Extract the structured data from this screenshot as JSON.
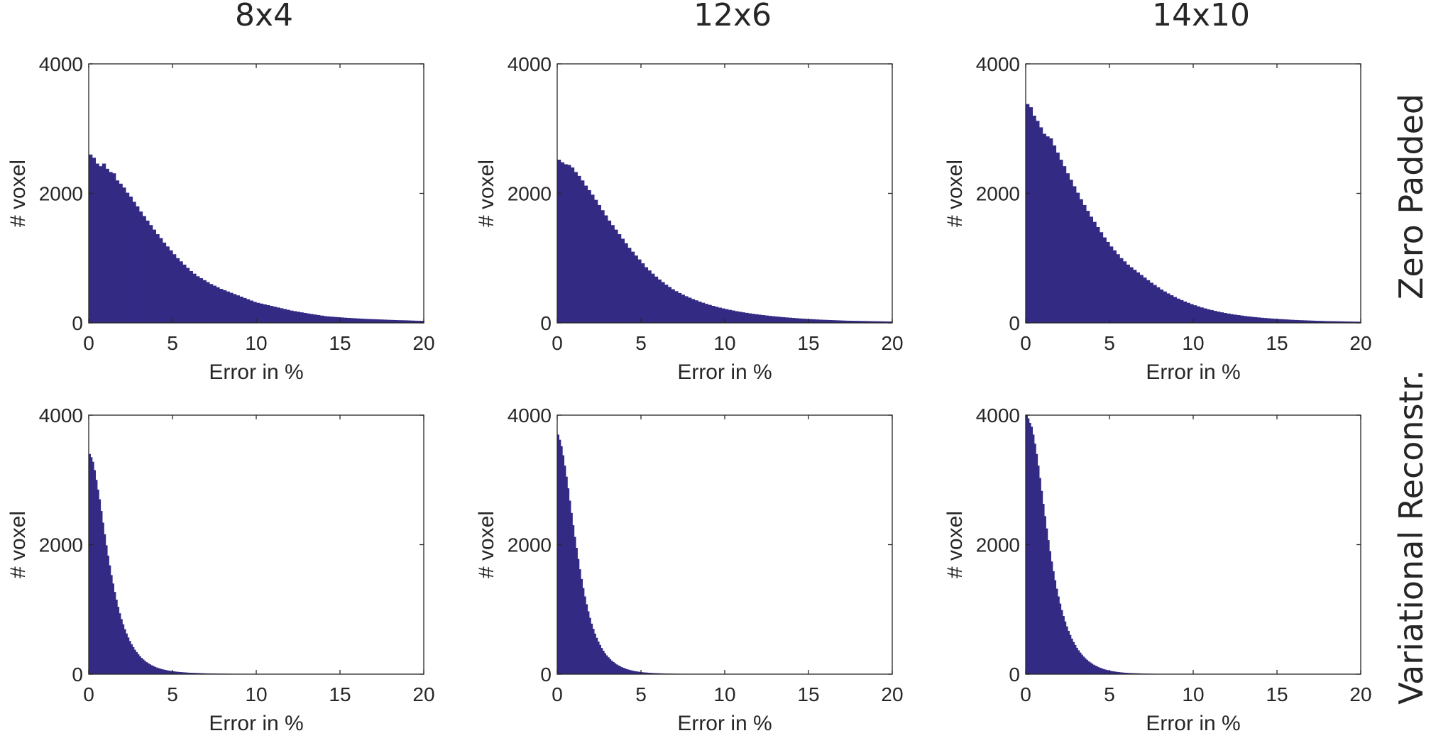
{
  "figure": {
    "column_titles": [
      "8x4",
      "12x6",
      "14x10"
    ],
    "row_labels": [
      "Zero Padded",
      "Variational Reconstr."
    ],
    "bar_color": "#332a84",
    "axes_color": "#262626"
  },
  "chart_data": [
    {
      "type": "histogram",
      "column": "8x4",
      "row": "Zero Padded",
      "xlabel": "Error in %",
      "ylabel": "# voxel",
      "xlim": [
        0,
        20
      ],
      "ylim": [
        0,
        4000
      ],
      "xticks": [
        0,
        5,
        10,
        15,
        20
      ],
      "yticks": [
        0,
        2000,
        4000
      ],
      "bin_width": 0.2,
      "values": [
        2600,
        2550,
        2460,
        2420,
        2460,
        2380,
        2330,
        2310,
        2200,
        2150,
        2090,
        2010,
        1950,
        1870,
        1800,
        1720,
        1650,
        1580,
        1510,
        1440,
        1370,
        1310,
        1240,
        1180,
        1120,
        1060,
        1000,
        950,
        900,
        850,
        800,
        760,
        720,
        690,
        660,
        630,
        600,
        575,
        550,
        525,
        505,
        485,
        465,
        445,
        425,
        405,
        385,
        365,
        345,
        325,
        310,
        298,
        286,
        274,
        262,
        250,
        238,
        226,
        214,
        202,
        190,
        181,
        172,
        163,
        154,
        145,
        137,
        129,
        121,
        113,
        105,
        100,
        96,
        92,
        88,
        84,
        80,
        77,
        74,
        71,
        68,
        65,
        62,
        60,
        58,
        56,
        54,
        52,
        50,
        48,
        46,
        44,
        42,
        41,
        40,
        38,
        36,
        34,
        33,
        32
      ]
    },
    {
      "type": "histogram",
      "column": "12x6",
      "row": "Zero Padded",
      "xlabel": "Error in %",
      "ylabel": "# voxel",
      "xlim": [
        0,
        20
      ],
      "ylim": [
        0,
        4000
      ],
      "xticks": [
        0,
        5,
        10,
        15,
        20
      ],
      "yticks": [
        0,
        2000,
        4000
      ],
      "bin_width": 0.2,
      "values": [
        2520,
        2480,
        2450,
        2440,
        2400,
        2330,
        2270,
        2200,
        2120,
        2050,
        1980,
        1900,
        1820,
        1740,
        1660,
        1580,
        1510,
        1440,
        1370,
        1300,
        1230,
        1160,
        1100,
        1040,
        980,
        920,
        860,
        810,
        760,
        715,
        670,
        630,
        590,
        555,
        520,
        490,
        462,
        436,
        412,
        390,
        368,
        348,
        329,
        311,
        294,
        278,
        263,
        249,
        236,
        224,
        212,
        201,
        191,
        181,
        172,
        163,
        155,
        147,
        140,
        133,
        126,
        120,
        114,
        108,
        103,
        98,
        93,
        88,
        84,
        80,
        76,
        72,
        68,
        65,
        62,
        59,
        56,
        53,
        50,
        48,
        46,
        44,
        42,
        40,
        38,
        36,
        34,
        33,
        32,
        31,
        30,
        29,
        28,
        27,
        26,
        25,
        24,
        23,
        22,
        21
      ]
    },
    {
      "type": "histogram",
      "column": "14x10",
      "row": "Zero Padded",
      "xlabel": "Error in %",
      "ylabel": "# voxel",
      "xlim": [
        0,
        20
      ],
      "ylim": [
        0,
        4000
      ],
      "xticks": [
        0,
        5,
        10,
        15,
        20
      ],
      "yticks": [
        0,
        2000,
        4000
      ],
      "bin_width": 0.2,
      "values": [
        3380,
        3330,
        3200,
        3120,
        3020,
        2920,
        2880,
        2850,
        2740,
        2630,
        2520,
        2420,
        2310,
        2210,
        2110,
        2010,
        1910,
        1820,
        1730,
        1640,
        1560,
        1480,
        1400,
        1320,
        1250,
        1180,
        1120,
        1060,
        1000,
        950,
        900,
        860,
        820,
        780,
        740,
        700,
        660,
        620,
        585,
        550,
        515,
        485,
        455,
        427,
        400,
        375,
        352,
        330,
        310,
        290,
        272,
        255,
        239,
        224,
        210,
        197,
        185,
        174,
        163,
        153,
        144,
        135,
        127,
        120,
        113,
        106,
        100,
        94,
        89,
        84,
        79,
        75,
        71,
        67,
        63,
        60,
        57,
        54,
        51,
        48,
        45,
        43,
        41,
        39,
        37,
        35,
        33,
        31,
        30,
        28,
        27,
        26,
        25,
        24,
        23,
        22,
        21,
        20,
        19,
        18
      ]
    },
    {
      "type": "histogram",
      "column": "8x4",
      "row": "Variational Reconstr.",
      "xlabel": "Error in %",
      "ylabel": "# voxel",
      "xlim": [
        0,
        20
      ],
      "ylim": [
        0,
        4000
      ],
      "xticks": [
        0,
        5,
        10,
        15,
        20
      ],
      "yticks": [
        0,
        2000,
        4000
      ],
      "bin_width": 0.1,
      "values": [
        3400,
        3350,
        3280,
        3150,
        3000,
        2850,
        2700,
        2520,
        2340,
        2160,
        1990,
        1830,
        1680,
        1530,
        1400,
        1270,
        1150,
        1040,
        940,
        850,
        770,
        695,
        628,
        567,
        512,
        462,
        418,
        377,
        341,
        308,
        278,
        251,
        227,
        205,
        185,
        168,
        152,
        138,
        125,
        113,
        103,
        94,
        86,
        79,
        72,
        66,
        61,
        56,
        52,
        48,
        44,
        41,
        38,
        35,
        33,
        31,
        29,
        27,
        25,
        23,
        22,
        21,
        20,
        19,
        18,
        17,
        16,
        15,
        14,
        13,
        12,
        12,
        11,
        11,
        10,
        10,
        9,
        9,
        9,
        8,
        8,
        8,
        7,
        7,
        7,
        6,
        6,
        6,
        6,
        5,
        5,
        5,
        5,
        5,
        4,
        4,
        4,
        4,
        4,
        4,
        3,
        3,
        3,
        3,
        3,
        3,
        3,
        3,
        3,
        3,
        2,
        2,
        2,
        2,
        2,
        2,
        2,
        2,
        2,
        2,
        2,
        2,
        2,
        2,
        2,
        2,
        2,
        2,
        2,
        2,
        1,
        1,
        1,
        1,
        1,
        1,
        1,
        1,
        1,
        1,
        1,
        1,
        1,
        1,
        1,
        1,
        1,
        1,
        1,
        1,
        1,
        1,
        1,
        1,
        1,
        1,
        1,
        1,
        1,
        1,
        1,
        1,
        1,
        1,
        1,
        1,
        1,
        1,
        1,
        1,
        1,
        1,
        1,
        1,
        1,
        1,
        1,
        1,
        1,
        1,
        1,
        1,
        1,
        1,
        1,
        1,
        1,
        1,
        1,
        1,
        1,
        1,
        1,
        1,
        1,
        1,
        1,
        1,
        1,
        1
      ]
    },
    {
      "type": "histogram",
      "column": "12x6",
      "row": "Variational Reconstr.",
      "xlabel": "Error in %",
      "ylabel": "# voxel",
      "xlim": [
        0,
        20
      ],
      "ylim": [
        0,
        4000
      ],
      "xticks": [
        0,
        5,
        10,
        15,
        20
      ],
      "yticks": [
        0,
        2000,
        4000
      ],
      "bin_width": 0.1,
      "values": [
        3700,
        3620,
        3520,
        3380,
        3220,
        3050,
        2870,
        2680,
        2490,
        2300,
        2120,
        1950,
        1780,
        1620,
        1470,
        1330,
        1200,
        1080,
        970,
        870,
        780,
        700,
        627,
        562,
        503,
        451,
        404,
        362,
        324,
        290,
        260,
        233,
        209,
        187,
        168,
        150,
        135,
        121,
        108,
        97,
        87,
        78,
        70,
        63,
        57,
        51,
        46,
        42,
        38,
        34,
        31,
        28,
        26,
        24,
        22,
        20,
        18,
        17,
        16,
        15,
        14,
        13,
        12,
        11,
        10,
        10,
        9,
        9,
        8,
        8,
        7,
        7,
        7,
        6,
        6,
        6,
        5,
        5,
        5,
        5,
        4,
        4,
        4,
        4,
        4,
        3,
        3,
        3,
        3,
        3,
        3,
        3,
        2,
        2,
        2,
        2,
        2,
        2,
        2,
        2,
        2,
        2,
        2,
        2,
        2,
        2,
        2,
        2,
        1,
        1,
        1,
        1,
        1,
        1,
        1,
        1,
        1,
        1,
        1,
        1,
        1,
        1,
        1,
        1,
        1,
        1,
        1,
        1,
        1,
        1,
        1,
        1,
        1,
        1,
        1,
        1,
        1,
        1,
        1,
        1,
        1,
        1,
        1,
        1,
        1,
        1,
        1,
        1,
        1,
        1,
        1,
        1,
        1,
        1,
        1,
        1,
        1,
        1,
        1,
        1,
        1,
        1,
        1,
        1,
        1,
        1,
        1,
        1,
        1,
        1,
        1,
        1,
        1,
        1,
        1,
        1,
        1,
        1,
        1,
        1,
        1,
        1,
        1,
        1,
        1,
        1,
        1,
        1,
        1,
        1,
        1,
        1,
        1,
        1,
        1,
        1,
        1,
        1,
        1,
        1,
        1
      ]
    },
    {
      "type": "histogram",
      "column": "14x10",
      "row": "Variational Reconstr.",
      "xlabel": "Error in %",
      "ylabel": "# voxel",
      "xlim": [
        0,
        20
      ],
      "ylim": [
        0,
        4000
      ],
      "xticks": [
        0,
        5,
        10,
        15,
        20
      ],
      "yticks": [
        0,
        2000,
        4000
      ],
      "bin_width": 0.1,
      "values": [
        4000,
        3950,
        3880,
        3820,
        3700,
        3560,
        3400,
        3220,
        3030,
        2830,
        2630,
        2440,
        2250,
        2070,
        1900,
        1740,
        1590,
        1450,
        1320,
        1200,
        1090,
        990,
        898,
        814,
        738,
        669,
        606,
        549,
        497,
        450,
        407,
        368,
        333,
        301,
        272,
        246,
        222,
        200,
        181,
        163,
        147,
        133,
        120,
        108,
        97,
        88,
        79,
        71,
        64,
        58,
        52,
        47,
        43,
        39,
        35,
        32,
        29,
        26,
        24,
        22,
        20,
        18,
        17,
        16,
        15,
        14,
        13,
        12,
        11,
        10,
        9,
        9,
        8,
        8,
        7,
        7,
        6,
        6,
        6,
        5,
        5,
        5,
        4,
        4,
        4,
        4,
        3,
        3,
        3,
        3,
        3,
        3,
        2,
        2,
        2,
        2,
        2,
        2,
        2,
        2,
        2,
        2,
        2,
        2,
        2,
        2,
        2,
        2,
        1,
        1,
        1,
        1,
        1,
        1,
        1,
        1,
        1,
        1,
        1,
        1,
        1,
        1,
        1,
        1,
        1,
        1,
        1,
        1,
        1,
        1,
        1,
        1,
        1,
        1,
        1,
        1,
        1,
        1,
        1,
        1,
        1,
        1,
        1,
        1,
        1,
        1,
        1,
        1,
        1,
        1,
        1,
        1,
        1,
        1,
        1,
        1,
        1,
        1,
        1,
        1,
        1,
        1,
        1,
        1,
        1,
        1,
        1,
        1,
        1,
        1,
        1,
        1,
        1,
        1,
        1,
        1,
        1,
        1,
        1,
        1,
        1,
        1,
        1,
        1,
        1,
        1,
        1,
        1,
        1,
        1,
        1,
        1,
        1,
        1,
        1,
        1,
        1,
        1,
        1,
        1,
        1,
        1,
        1
      ]
    }
  ]
}
